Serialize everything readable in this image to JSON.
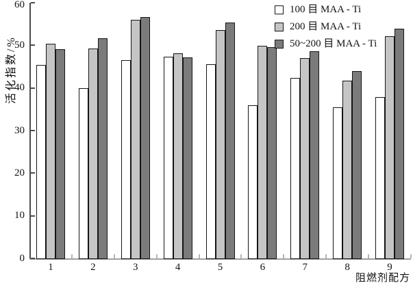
{
  "chart_data": {
    "type": "bar",
    "title": "",
    "xlabel": "阻燃剂配方",
    "ylabel": "活化指数/%",
    "categories": [
      "1",
      "2",
      "3",
      "4",
      "5",
      "6",
      "7",
      "8",
      "9"
    ],
    "series": [
      {
        "name": "100 目 MAA - Ti",
        "color": "#ffffff",
        "values": [
          45.4,
          40.0,
          46.5,
          47.4,
          45.6,
          35.9,
          42.4,
          35.5,
          37.9
        ]
      },
      {
        "name": "200 目 MAA - Ti",
        "color": "#c5c5c5",
        "values": [
          50.4,
          49.2,
          56.0,
          48.1,
          53.6,
          49.9,
          47.0,
          41.7,
          52.2
        ]
      },
      {
        "name": "50~200 目 MAA - Ti",
        "color": "#7b7b7b",
        "values": [
          49.1,
          51.6,
          56.6,
          47.1,
          55.3,
          49.6,
          48.6,
          44.0,
          53.9
        ]
      }
    ],
    "ylim": [
      0,
      60
    ],
    "yticks": [
      0,
      10,
      20,
      30,
      40,
      50,
      60
    ],
    "grid": false,
    "legend_position": "top-right",
    "bar_border_color": "#141414"
  }
}
